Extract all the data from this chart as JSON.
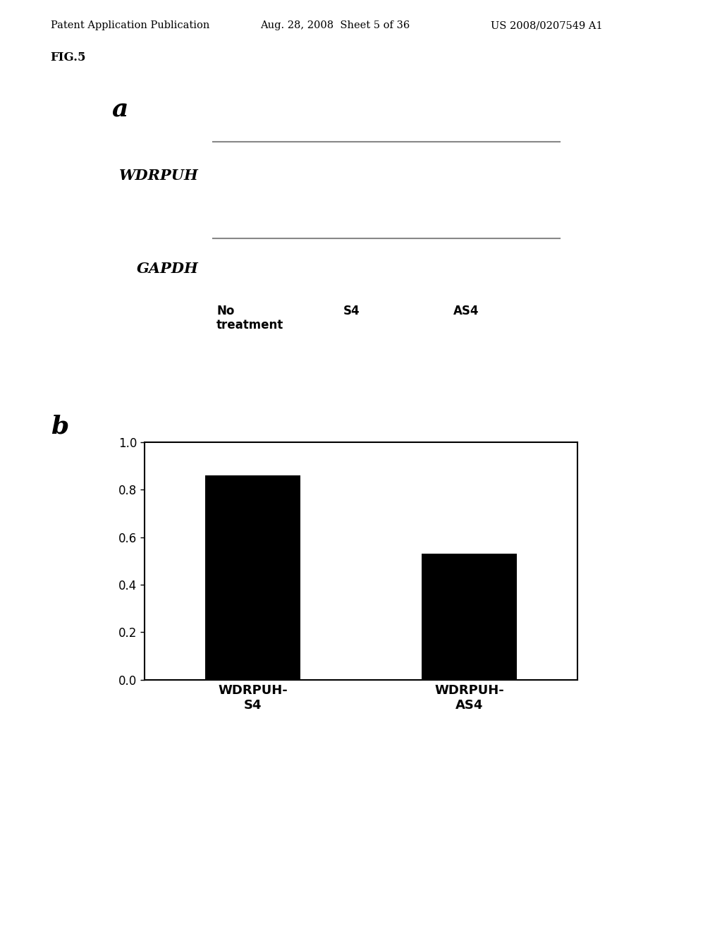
{
  "header_left": "Patent Application Publication",
  "header_center": "Aug. 28, 2008  Sheet 5 of 36",
  "header_right": "US 2008/0207549 A1",
  "fig_label": "FIG.5",
  "panel_a_label": "a",
  "panel_b_label": "b",
  "wdrpuh_label": "WDRPUH",
  "gapdh_label": "GAPDH",
  "x_labels": [
    "No\ntreatment",
    "S4",
    "AS4"
  ],
  "bar_categories": [
    "WDRPUH-\nS4",
    "WDRPUH-\nAS4"
  ],
  "bar_values": [
    0.86,
    0.53
  ],
  "bar_color": "#000000",
  "yticks": [
    0.0,
    0.2,
    0.4,
    0.6,
    0.8,
    1.0
  ],
  "ylim": [
    0.0,
    1.0
  ],
  "background_color": "#ffffff",
  "blot_color": "#000000",
  "gray_line_color": "#888888"
}
